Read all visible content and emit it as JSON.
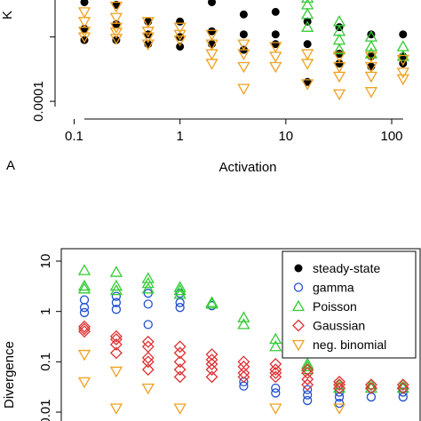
{
  "colors": {
    "steady_state": "#000000",
    "gamma": "#1f4fd1",
    "poisson": "#33cc33",
    "gaussian": "#e03030",
    "neg_binomial": "#f0a020"
  },
  "chart_data": [
    {
      "type": "scatter",
      "panel_label": "A",
      "ylabel_fragment": "K",
      "xlabel": "Activation",
      "x_log": true,
      "y_log": true,
      "x_ticks": [
        0.1,
        1,
        10,
        100
      ],
      "x_tick_labels": [
        "0.1",
        "1",
        "10",
        "100"
      ],
      "y_ticks": [
        0.0001
      ],
      "y_tick_labels": [
        "0.0001"
      ],
      "xlim": [
        0.09,
        150
      ],
      "ylim": [
        5e-05,
        0.5
      ],
      "series": [
        {
          "key": "steady_state",
          "marker": "filled-circle",
          "points": [
            [
              0.125,
              0.25
            ],
            [
              0.125,
              0.12
            ],
            [
              0.125,
              0.018
            ],
            [
              0.125,
              0.008
            ],
            [
              0.25,
              0.1
            ],
            [
              0.25,
              0.025
            ],
            [
              0.25,
              0.008
            ],
            [
              0.5,
              0.22
            ],
            [
              0.5,
              0.03
            ],
            [
              0.5,
              0.012
            ],
            [
              0.5,
              0.006
            ],
            [
              1,
              0.2
            ],
            [
              1,
              0.03
            ],
            [
              1,
              0.01
            ],
            [
              1,
              0.005
            ],
            [
              2,
              0.12
            ],
            [
              2,
              0.015
            ],
            [
              2,
              0.006
            ],
            [
              4,
              0.05
            ],
            [
              4,
              0.012
            ],
            [
              4,
              0.004
            ],
            [
              8,
              0.06
            ],
            [
              8,
              0.012
            ],
            [
              8,
              0.006
            ],
            [
              16,
              0.03
            ],
            [
              16,
              0.006
            ],
            [
              16,
              0.0004
            ],
            [
              32,
              0.02
            ],
            [
              32,
              0.003
            ],
            [
              32,
              0.0015
            ],
            [
              64,
              0.012
            ],
            [
              64,
              0.0025
            ],
            [
              64,
              0.0012
            ],
            [
              128,
              0.012
            ],
            [
              128,
              0.0025
            ],
            [
              128,
              0.0015
            ]
          ]
        },
        {
          "key": "poisson",
          "marker": "open-triangle",
          "points": [
            [
              8,
              0.3
            ],
            [
              16,
              0.16
            ],
            [
              16,
              0.1
            ],
            [
              16,
              0.05
            ],
            [
              16,
              0.02
            ],
            [
              32,
              0.03
            ],
            [
              32,
              0.015
            ],
            [
              32,
              0.008
            ],
            [
              32,
              0.004
            ],
            [
              64,
              0.01
            ],
            [
              64,
              0.005
            ],
            [
              64,
              0.003
            ],
            [
              128,
              0.005
            ],
            [
              128,
              0.0025
            ]
          ]
        },
        {
          "key": "neg_binomial",
          "marker": "open-down-triangle",
          "points": [
            [
              0.125,
              0.06
            ],
            [
              0.125,
              0.03
            ],
            [
              0.125,
              0.015
            ],
            [
              0.125,
              0.01
            ],
            [
              0.25,
              0.09
            ],
            [
              0.25,
              0.04
            ],
            [
              0.25,
              0.02
            ],
            [
              0.25,
              0.014
            ],
            [
              0.25,
              0.009
            ],
            [
              0.5,
              0.03
            ],
            [
              0.5,
              0.015
            ],
            [
              0.5,
              0.01
            ],
            [
              0.5,
              0.006
            ],
            [
              1,
              0.02
            ],
            [
              1,
              0.012
            ],
            [
              1,
              0.008
            ],
            [
              2,
              0.012
            ],
            [
              2,
              0.006
            ],
            [
              2,
              0.003
            ],
            [
              2,
              0.0015
            ],
            [
              4,
              0.006
            ],
            [
              4,
              0.003
            ],
            [
              4,
              0.0012
            ],
            [
              4,
              0.00025
            ],
            [
              8,
              0.005
            ],
            [
              8,
              0.0025
            ],
            [
              8,
              0.0012
            ],
            [
              16,
              0.003
            ],
            [
              16,
              0.0015
            ],
            [
              16,
              0.00035
            ],
            [
              32,
              0.0025
            ],
            [
              32,
              0.0012
            ],
            [
              32,
              0.0006
            ],
            [
              32,
              0.00017
            ],
            [
              64,
              0.0025
            ],
            [
              64,
              0.0012
            ],
            [
              64,
              0.0006
            ],
            [
              64,
              0.0002
            ],
            [
              128,
              0.002
            ],
            [
              128,
              0.0008
            ],
            [
              128,
              0.0005
            ]
          ]
        }
      ]
    },
    {
      "type": "scatter",
      "ylabel": "Divergence",
      "y_log": true,
      "x_log": true,
      "y_ticks": [
        10,
        1,
        0.1,
        0.01
      ],
      "y_tick_labels": [
        "10",
        "1",
        "0.1",
        "0.01"
      ],
      "xlim": [
        0.09,
        150
      ],
      "ylim": [
        0.009,
        15
      ],
      "legend_position": "top-right",
      "legend": [
        {
          "key": "steady_state",
          "label": "steady-state",
          "marker": "filled-circle"
        },
        {
          "key": "gamma",
          "label": "gamma",
          "marker": "open-circle"
        },
        {
          "key": "poisson",
          "label": "Poisson",
          "marker": "open-triangle"
        },
        {
          "key": "gaussian",
          "label": "Gaussian",
          "marker": "open-diamond"
        },
        {
          "key": "neg_binomial",
          "label": "neg. binomial",
          "marker": "open-down-triangle"
        }
      ],
      "series": [
        {
          "key": "gamma",
          "marker": "open-circle",
          "points": [
            [
              0.125,
              1.7
            ],
            [
              0.125,
              1.2
            ],
            [
              0.125,
              0.95
            ],
            [
              0.25,
              2.0
            ],
            [
              0.25,
              1.5
            ],
            [
              0.25,
              1.1
            ],
            [
              0.5,
              2.3
            ],
            [
              0.5,
              1.4
            ],
            [
              0.5,
              0.55
            ],
            [
              1,
              2.3
            ],
            [
              1,
              1.5
            ],
            [
              1,
              1.2
            ],
            [
              2,
              1.3
            ],
            [
              4,
              0.04
            ],
            [
              4,
              0.033
            ],
            [
              8,
              0.03
            ],
            [
              8,
              0.024
            ],
            [
              16,
              0.028
            ],
            [
              16,
              0.022
            ],
            [
              16,
              0.017
            ],
            [
              32,
              0.025
            ],
            [
              32,
              0.02
            ],
            [
              32,
              0.015
            ],
            [
              64,
              0.03
            ],
            [
              64,
              0.02
            ],
            [
              128,
              0.03
            ],
            [
              128,
              0.025
            ],
            [
              128,
              0.02
            ]
          ]
        },
        {
          "key": "poisson",
          "marker": "open-triangle",
          "points": [
            [
              0.125,
              6.5
            ],
            [
              0.125,
              3.2
            ],
            [
              0.125,
              2.8
            ],
            [
              0.25,
              6.0
            ],
            [
              0.25,
              3.2
            ],
            [
              0.25,
              2.6
            ],
            [
              0.5,
              4.5
            ],
            [
              0.5,
              3.6
            ],
            [
              0.5,
              2.8
            ],
            [
              1,
              3.0
            ],
            [
              1,
              2.6
            ],
            [
              1,
              2.2
            ],
            [
              2,
              1.5
            ],
            [
              2,
              1.4
            ],
            [
              4,
              0.75
            ],
            [
              4,
              0.55
            ],
            [
              8,
              0.28
            ],
            [
              8,
              0.2
            ],
            [
              16,
              0.09
            ],
            [
              16,
              0.08
            ],
            [
              16,
              0.07
            ],
            [
              32,
              0.035
            ],
            [
              32,
              0.03
            ],
            [
              64,
              0.035
            ],
            [
              64,
              0.03
            ],
            [
              128,
              0.035
            ],
            [
              128,
              0.03
            ]
          ]
        },
        {
          "key": "gaussian",
          "marker": "open-diamond",
          "points": [
            [
              0.125,
              0.5
            ],
            [
              0.125,
              0.45
            ],
            [
              0.125,
              0.4
            ],
            [
              0.25,
              0.32
            ],
            [
              0.25,
              0.28
            ],
            [
              0.25,
              0.22
            ],
            [
              0.25,
              0.15
            ],
            [
              0.5,
              0.25
            ],
            [
              0.5,
              0.2
            ],
            [
              0.5,
              0.12
            ],
            [
              0.5,
              0.1
            ],
            [
              0.5,
              0.07
            ],
            [
              1,
              0.2
            ],
            [
              1,
              0.15
            ],
            [
              1,
              0.1
            ],
            [
              1,
              0.07
            ],
            [
              1,
              0.05
            ],
            [
              2,
              0.14
            ],
            [
              2,
              0.11
            ],
            [
              2,
              0.09
            ],
            [
              2,
              0.07
            ],
            [
              2,
              0.05
            ],
            [
              4,
              0.1
            ],
            [
              4,
              0.08
            ],
            [
              4,
              0.06
            ],
            [
              4,
              0.05
            ],
            [
              8,
              0.09
            ],
            [
              8,
              0.07
            ],
            [
              8,
              0.06
            ],
            [
              8,
              0.05
            ],
            [
              16,
              0.07
            ],
            [
              16,
              0.06
            ],
            [
              16,
              0.045
            ],
            [
              16,
              0.035
            ],
            [
              32,
              0.04
            ],
            [
              32,
              0.035
            ],
            [
              32,
              0.03
            ],
            [
              64,
              0.035
            ],
            [
              64,
              0.03
            ],
            [
              128,
              0.035
            ],
            [
              128,
              0.03
            ]
          ]
        },
        {
          "key": "neg_binomial",
          "marker": "open-down-triangle",
          "points": [
            [
              0.125,
              0.14
            ],
            [
              0.125,
              0.04
            ],
            [
              0.25,
              0.065
            ],
            [
              0.25,
              0.012
            ],
            [
              0.5,
              0.03
            ],
            [
              1,
              0.012
            ],
            [
              8,
              0.012
            ],
            [
              32,
              0.012
            ]
          ]
        }
      ]
    }
  ]
}
